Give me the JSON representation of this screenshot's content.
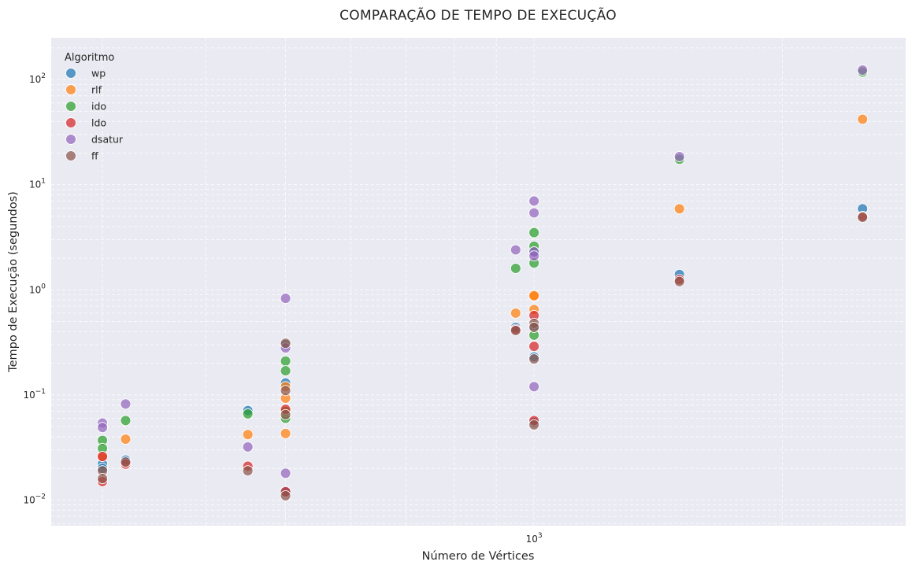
{
  "chart_data": {
    "type": "scatter",
    "title": "COMPARAÇÃO DE TEMPO DE EXECUÇÃO",
    "xlabel": "Número de Vértices",
    "ylabel": "Tempo de Execução (segundos)",
    "xscale": "log",
    "yscale": "log",
    "xlim": [
      260,
      2820
    ],
    "ylim": [
      0.0057,
      250
    ],
    "x_ticks": [
      {
        "value": 1000,
        "base": "10",
        "exp": "3"
      }
    ],
    "y_ticks": [
      {
        "value": 0.01,
        "base": "10",
        "exp": "−2"
      },
      {
        "value": 0.1,
        "base": "10",
        "exp": "−1"
      },
      {
        "value": 1,
        "base": "10",
        "exp": "0"
      },
      {
        "value": 10,
        "base": "10",
        "exp": "1"
      },
      {
        "value": 100,
        "base": "10",
        "exp": "2"
      }
    ],
    "grid": true,
    "legend_title": "Algoritmo",
    "legend_position": "top-left",
    "series": [
      {
        "name": "wp",
        "color": "#1f77b4",
        "points": [
          [
            300,
            0.022
          ],
          [
            300,
            0.02
          ],
          [
            320,
            0.024
          ],
          [
            450,
            0.071
          ],
          [
            500,
            0.13
          ],
          [
            500,
            0.012
          ],
          [
            500,
            0.3
          ],
          [
            950,
            0.44
          ],
          [
            1000,
            2.3
          ],
          [
            1000,
            0.45
          ],
          [
            1000,
            0.23
          ],
          [
            1000,
            0.055
          ],
          [
            1500,
            1.4
          ],
          [
            2500,
            5.9
          ]
        ]
      },
      {
        "name": "rlf",
        "color": "#ff7f0e",
        "points": [
          [
            300,
            0.026
          ],
          [
            320,
            0.038
          ],
          [
            450,
            0.042
          ],
          [
            500,
            0.093
          ],
          [
            500,
            0.043
          ],
          [
            500,
            0.12
          ],
          [
            950,
            0.6
          ],
          [
            1000,
            0.87
          ],
          [
            1000,
            0.65
          ],
          [
            1000,
            0.88
          ],
          [
            1500,
            5.9
          ],
          [
            2500,
            42
          ]
        ]
      },
      {
        "name": "ido",
        "color": "#2ca02c",
        "points": [
          [
            300,
            0.037
          ],
          [
            300,
            0.031
          ],
          [
            320,
            0.057
          ],
          [
            450,
            0.066
          ],
          [
            500,
            0.21
          ],
          [
            500,
            0.17
          ],
          [
            500,
            0.06
          ],
          [
            500,
            0.07
          ],
          [
            950,
            1.6
          ],
          [
            1000,
            3.5
          ],
          [
            1000,
            2.6
          ],
          [
            1000,
            1.8
          ],
          [
            1000,
            0.37
          ],
          [
            1500,
            17.5
          ],
          [
            2500,
            118
          ]
        ]
      },
      {
        "name": "ldo",
        "color": "#d62728",
        "points": [
          [
            300,
            0.026
          ],
          [
            300,
            0.015
          ],
          [
            320,
            0.022
          ],
          [
            450,
            0.021
          ],
          [
            500,
            0.073
          ],
          [
            500,
            0.012
          ],
          [
            950,
            0.42
          ],
          [
            1000,
            0.57
          ],
          [
            1000,
            0.29
          ],
          [
            1000,
            0.057
          ],
          [
            1500,
            1.25
          ],
          [
            2500,
            5.0
          ]
        ]
      },
      {
        "name": "dsatur",
        "color": "#9467bd",
        "points": [
          [
            300,
            0.054
          ],
          [
            300,
            0.049
          ],
          [
            320,
            0.082
          ],
          [
            450,
            0.032
          ],
          [
            500,
            0.83
          ],
          [
            500,
            0.28
          ],
          [
            500,
            0.018
          ],
          [
            950,
            2.4
          ],
          [
            1000,
            7.0
          ],
          [
            1000,
            5.4
          ],
          [
            1000,
            2.3
          ],
          [
            1000,
            2.1
          ],
          [
            1000,
            0.12
          ],
          [
            1500,
            18.5
          ],
          [
            2500,
            123
          ]
        ]
      },
      {
        "name": "ff",
        "color": "#8c564b",
        "points": [
          [
            300,
            0.019
          ],
          [
            300,
            0.016
          ],
          [
            320,
            0.023
          ],
          [
            450,
            0.019
          ],
          [
            500,
            0.31
          ],
          [
            500,
            0.11
          ],
          [
            500,
            0.065
          ],
          [
            500,
            0.011
          ],
          [
            950,
            0.41
          ],
          [
            1000,
            0.48
          ],
          [
            1000,
            0.44
          ],
          [
            1000,
            0.22
          ],
          [
            1000,
            0.052
          ],
          [
            1500,
            1.2
          ],
          [
            2500,
            4.9
          ]
        ]
      }
    ]
  }
}
